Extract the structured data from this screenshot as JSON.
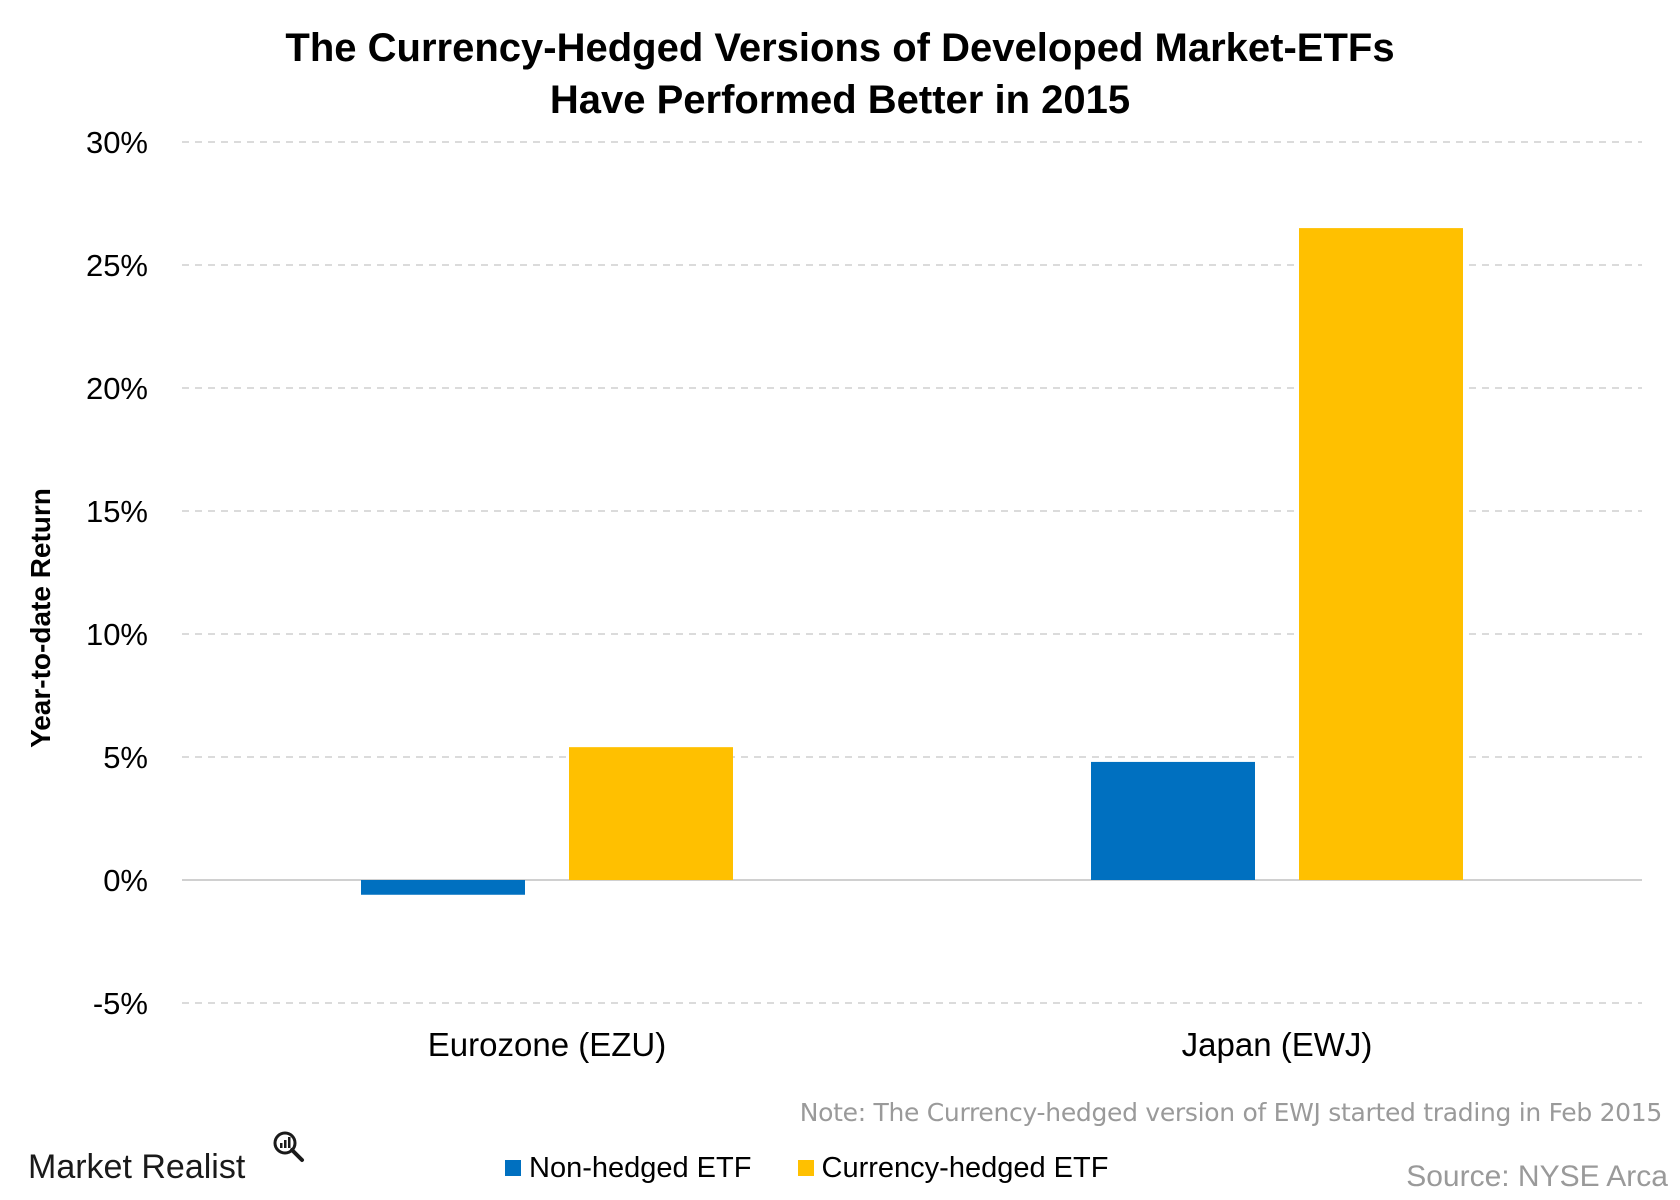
{
  "chart_data": {
    "type": "bar",
    "title_lines": [
      "The Currency-Hedged Versions of Developed Market-ETFs",
      "Have Performed Better in 2015"
    ],
    "ylabel": "Year-to-date Return",
    "xlabel": "",
    "categories": [
      "Eurozone (EZU)",
      "Japan (EWJ)"
    ],
    "series": [
      {
        "name": "Non-hedged ETF",
        "color": "#0070C0",
        "values": [
          -0.6,
          4.8
        ]
      },
      {
        "name": "Currency-hedged ETF",
        "color": "#FFC000",
        "values": [
          5.4,
          26.5
        ]
      }
    ],
    "ylim": [
      -5,
      30
    ],
    "yticks": [
      -5,
      0,
      5,
      10,
      15,
      20,
      25,
      30
    ],
    "ytick_labels": [
      "-5%",
      "0%",
      "5%",
      "10%",
      "15%",
      "20%",
      "25%",
      "30%"
    ],
    "grid": true,
    "legend_position": "bottom"
  },
  "note": "Note: The Currency-hedged version of EWJ started trading in Feb 2015",
  "source": "Source: NYSE Arca",
  "brand": "Market Realist"
}
